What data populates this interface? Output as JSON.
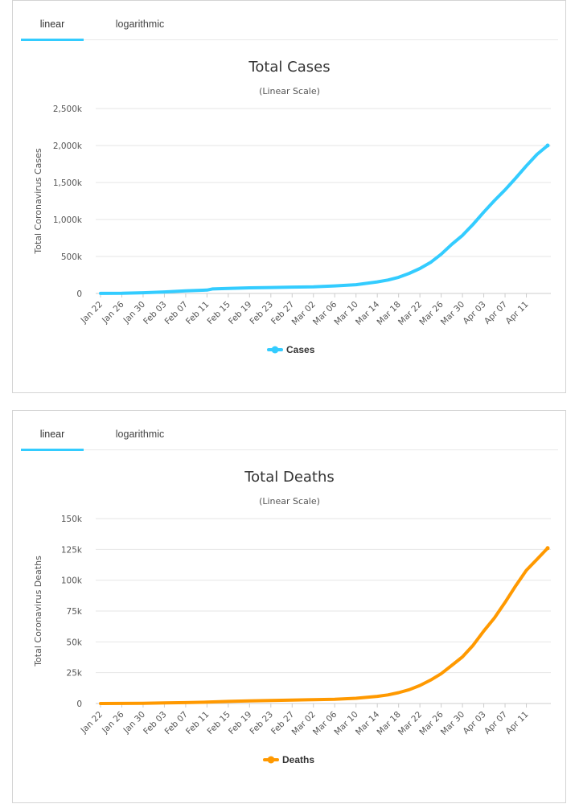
{
  "tabs": {
    "linear": "linear",
    "logarithmic": "logarithmic"
  },
  "chart_data": [
    {
      "type": "line",
      "title": "Total Cases",
      "subtitle": "(Linear Scale)",
      "ylabel": "Total Coronavirus Cases",
      "xlabel": "",
      "ylim": [
        0,
        2500000
      ],
      "yticks": [
        0,
        500000,
        1000000,
        1500000,
        2000000,
        2500000
      ],
      "ytick_labels": [
        "0",
        "500k",
        "1,000k",
        "1,500k",
        "2,000k",
        "2,500k"
      ],
      "xtick_labels": [
        "Jan 22",
        "Jan 26",
        "Jan 30",
        "Feb 03",
        "Feb 07",
        "Feb 11",
        "Feb 15",
        "Feb 19",
        "Feb 23",
        "Feb 27",
        "Mar 02",
        "Mar 06",
        "Mar 10",
        "Mar 14",
        "Mar 18",
        "Mar 22",
        "Mar 26",
        "Mar 30",
        "Apr 03",
        "Apr 07",
        "Apr 11"
      ],
      "grid": true,
      "legend_position": "bottom-center",
      "color": "#33ccff",
      "series": [
        {
          "name": "Cases",
          "x": [
            "Jan 22",
            "Jan 26",
            "Jan 30",
            "Feb 03",
            "Feb 07",
            "Feb 11",
            "Feb 12",
            "Feb 15",
            "Feb 19",
            "Feb 23",
            "Feb 27",
            "Mar 02",
            "Mar 06",
            "Mar 10",
            "Mar 14",
            "Mar 16",
            "Mar 18",
            "Mar 20",
            "Mar 22",
            "Mar 24",
            "Mar 26",
            "Mar 28",
            "Mar 30",
            "Apr 01",
            "Apr 03",
            "Apr 05",
            "Apr 07",
            "Apr 09",
            "Apr 11",
            "Apr 13",
            "Apr 15"
          ],
          "values": [
            580,
            2100,
            9900,
            20600,
            34400,
            45200,
            60400,
            69000,
            75700,
            80300,
            86000,
            90300,
            101800,
            119000,
            157000,
            182000,
            218000,
            272000,
            337000,
            420000,
            530000,
            665000,
            785000,
            935000,
            1100000,
            1255000,
            1400000,
            1560000,
            1725000,
            1880000,
            2000000
          ]
        }
      ]
    },
    {
      "type": "line",
      "title": "Total Deaths",
      "subtitle": "(Linear Scale)",
      "ylabel": "Total Coronavirus Deaths",
      "xlabel": "",
      "ylim": [
        0,
        150000
      ],
      "yticks": [
        0,
        25000,
        50000,
        75000,
        100000,
        125000,
        150000
      ],
      "ytick_labels": [
        "0",
        "25k",
        "50k",
        "75k",
        "100k",
        "125k",
        "150k"
      ],
      "xtick_labels": [
        "Jan 22",
        "Jan 26",
        "Jan 30",
        "Feb 03",
        "Feb 07",
        "Feb 11",
        "Feb 15",
        "Feb 19",
        "Feb 23",
        "Feb 27",
        "Mar 02",
        "Mar 06",
        "Mar 10",
        "Mar 14",
        "Mar 18",
        "Mar 22",
        "Mar 26",
        "Mar 30",
        "Apr 03",
        "Apr 07",
        "Apr 11"
      ],
      "grid": true,
      "legend_position": "bottom-center",
      "color": "#ff9900",
      "series": [
        {
          "name": "Deaths",
          "x": [
            "Jan 22",
            "Jan 26",
            "Jan 30",
            "Feb 03",
            "Feb 07",
            "Feb 11",
            "Feb 15",
            "Feb 19",
            "Feb 23",
            "Feb 27",
            "Mar 02",
            "Mar 06",
            "Mar 10",
            "Mar 14",
            "Mar 16",
            "Mar 18",
            "Mar 20",
            "Mar 22",
            "Mar 24",
            "Mar 26",
            "Mar 28",
            "Mar 30",
            "Apr 01",
            "Apr 03",
            "Apr 05",
            "Apr 07",
            "Apr 09",
            "Apr 11",
            "Apr 13",
            "Apr 15"
          ],
          "values": [
            17,
            56,
            213,
            427,
            722,
            1114,
            1670,
            2120,
            2460,
            2800,
            3100,
            3460,
            4260,
            5800,
            7000,
            8800,
            11200,
            14600,
            19000,
            24200,
            31000,
            37800,
            47200,
            58800,
            69400,
            82000,
            95500,
            108000,
            117000,
            126000
          ]
        }
      ]
    }
  ]
}
